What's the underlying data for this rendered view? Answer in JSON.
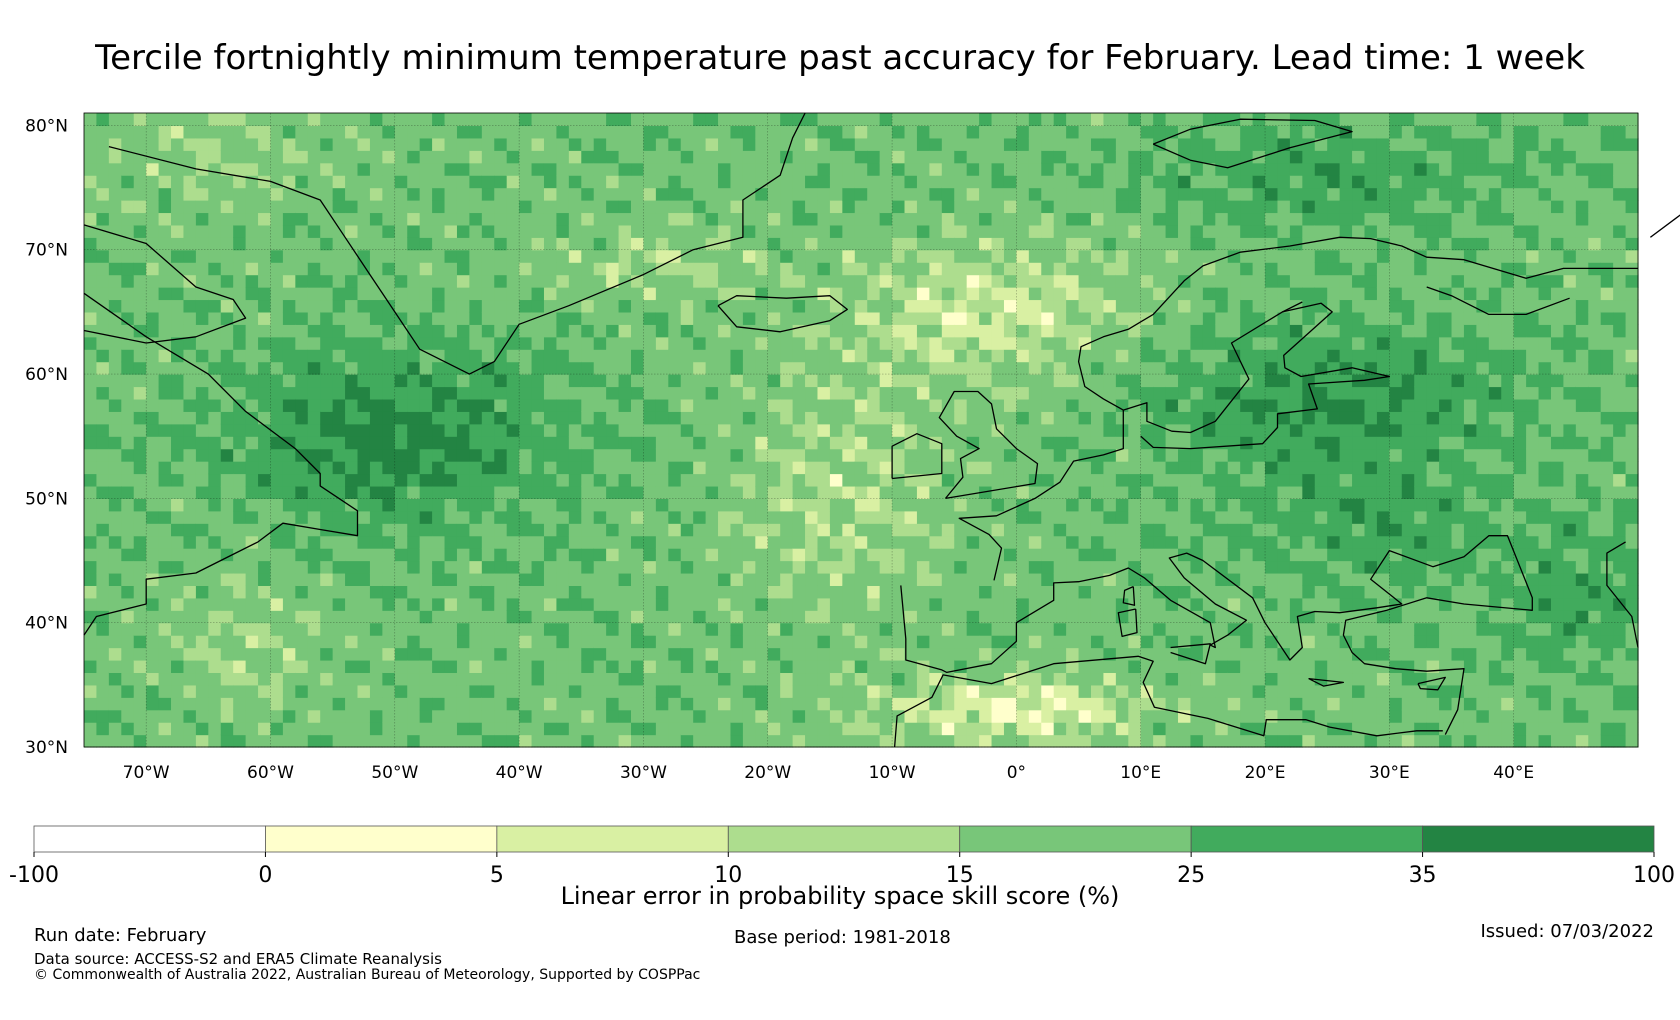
{
  "title": "Tercile fortnightly minimum temperature past accuracy for February. Lead time: 1 week",
  "map": {
    "projection": "PlateCarree",
    "lon_range": [
      -75,
      50
    ],
    "lat_range": [
      30,
      81
    ],
    "grid_step_lon": 10,
    "grid_step_lat": 10,
    "lat_labels": [
      "30°N",
      "40°N",
      "50°N",
      "60°N",
      "70°N",
      "80°N"
    ],
    "lon_labels": [
      "70°W",
      "60°W",
      "50°W",
      "40°W",
      "30°W",
      "20°W",
      "10°W",
      "0°",
      "10°E",
      "20°E",
      "30°E",
      "40°E"
    ],
    "coastline_color": "#000000"
  },
  "colorbar": {
    "label": "Linear error in probability space skill score (%)",
    "bounds": [
      "-100",
      "0",
      "5",
      "10",
      "15",
      "25",
      "35",
      "100"
    ],
    "colors": [
      "#ffffff",
      "#ffffcc",
      "#d9f0a3",
      "#addd8e",
      "#78c679",
      "#41ab5d",
      "#238443"
    ]
  },
  "footer": {
    "run_date": "Run date: February",
    "data_source": "Data source: ACCESS-S2 and ERA5 Climate Reanalysis",
    "copyright": "© Commonwealth of Australia 2022, Australian Bureau of Meteorology, Supported by COSPPac",
    "base_period": "Base period: 1981-2018",
    "issued": "Issued: 07/03/2022"
  }
}
